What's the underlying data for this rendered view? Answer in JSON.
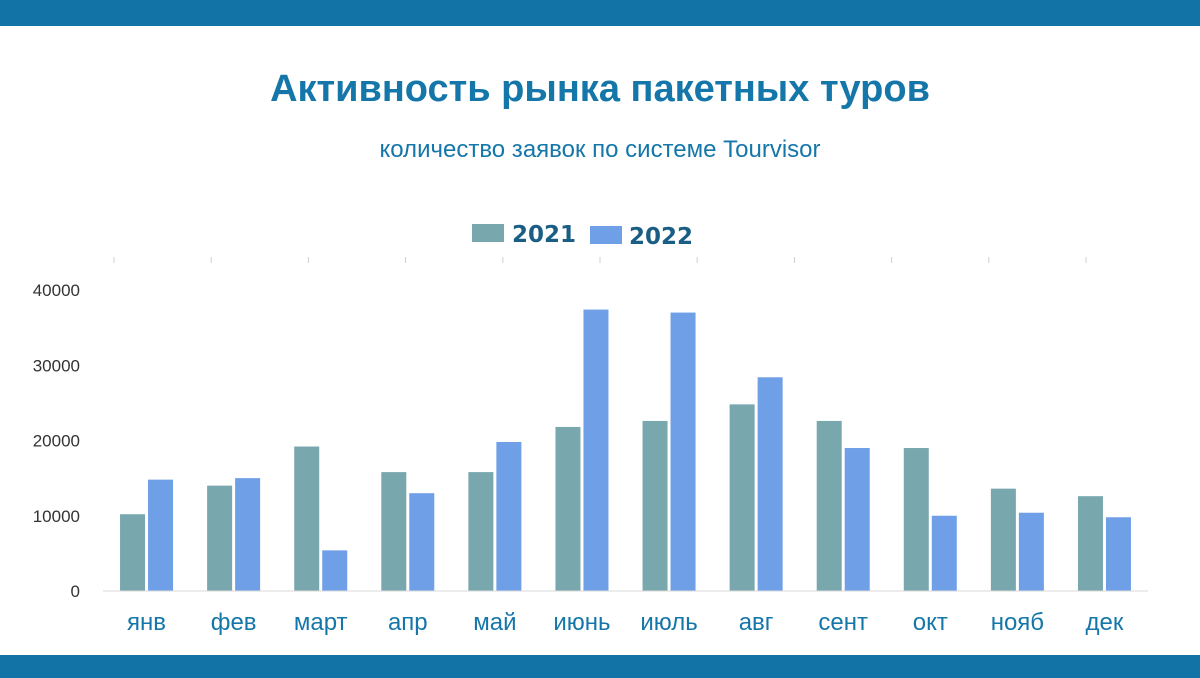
{
  "colors": {
    "band": "#1173a6",
    "title": "#1577a9",
    "series_2021": "#78a7ad",
    "series_2022": "#6f9fe6"
  },
  "header": {
    "title": "Активность рынка пакетных туров",
    "subtitle": "количество заявок по системе Tourvisor"
  },
  "chart_data": {
    "type": "bar",
    "categories": [
      "янв",
      "фев",
      "март",
      "апр",
      "май",
      "июнь",
      "июль",
      "авг",
      "сент",
      "окт",
      "нояб",
      "дек"
    ],
    "series": [
      {
        "name": "2021",
        "values": [
          10200,
          14000,
          19200,
          15800,
          15800,
          21800,
          22600,
          24800,
          22600,
          19000,
          13600,
          12600
        ]
      },
      {
        "name": "2022",
        "values": [
          14800,
          15000,
          5400,
          13000,
          19800,
          37400,
          37000,
          28400,
          19000,
          10000,
          10400,
          9800
        ]
      }
    ],
    "yticks": [
      0,
      10000,
      20000,
      30000,
      40000
    ],
    "ylim": [
      0,
      40000
    ],
    "legend": "top-center",
    "grid": false
  }
}
